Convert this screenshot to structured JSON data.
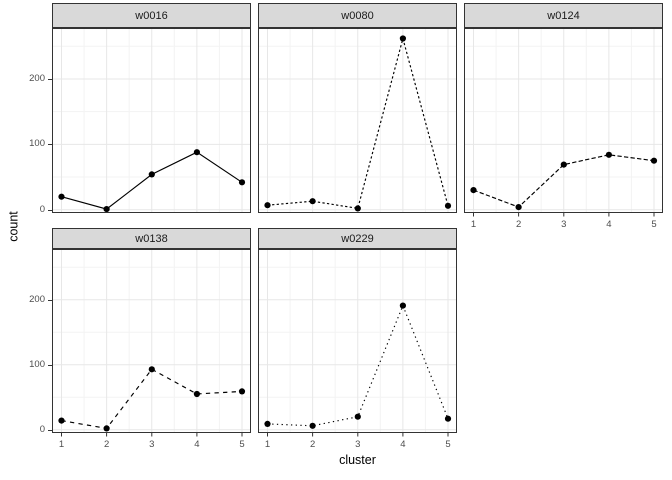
{
  "chart_data": {
    "type": "line",
    "title": "",
    "layout": "facet_wrap, 3 columns, 5 panels, shared axes",
    "xlabel": "cluster",
    "ylabel": "count",
    "x": [
      1,
      2,
      3,
      4,
      5
    ],
    "x_tick_labels": [
      "1",
      "2",
      "3",
      "4",
      "5"
    ],
    "y_tick_values": [
      0,
      100,
      200
    ],
    "y_tick_labels": [
      "0",
      "100",
      "200"
    ],
    "y_minor_tick_values": [
      50,
      150,
      250
    ],
    "ylim": [
      -5,
      278
    ],
    "grid": "major and minor, both axes",
    "series": [
      {
        "name": "w0016",
        "linetype": "solid",
        "values": [
          20,
          1,
          54,
          88,
          42
        ]
      },
      {
        "name": "w0080",
        "linetype": "22",
        "values": [
          7,
          13,
          2,
          262,
          6
        ]
      },
      {
        "name": "w0124",
        "linetype": "42",
        "values": [
          30,
          4,
          69,
          84,
          75
        ]
      },
      {
        "name": "w0138",
        "linetype": "44",
        "values": [
          14,
          2,
          93,
          55,
          59
        ]
      },
      {
        "name": "w0229",
        "linetype": "13",
        "values": [
          9,
          6,
          20,
          191,
          17
        ]
      }
    ]
  },
  "theme": {
    "background": "#ffffff",
    "strip_fill": "#d9d9d9",
    "strip_border": "#333333",
    "panel_border": "#333333",
    "grid_major_color": "#e7e7e7",
    "grid_minor_color": "#f3f3f3",
    "line_color": "#000000",
    "point_color": "#000000",
    "tick_color": "#333333",
    "tick_label_color": "#4d4d4d",
    "axis_title_color": "#000000"
  }
}
